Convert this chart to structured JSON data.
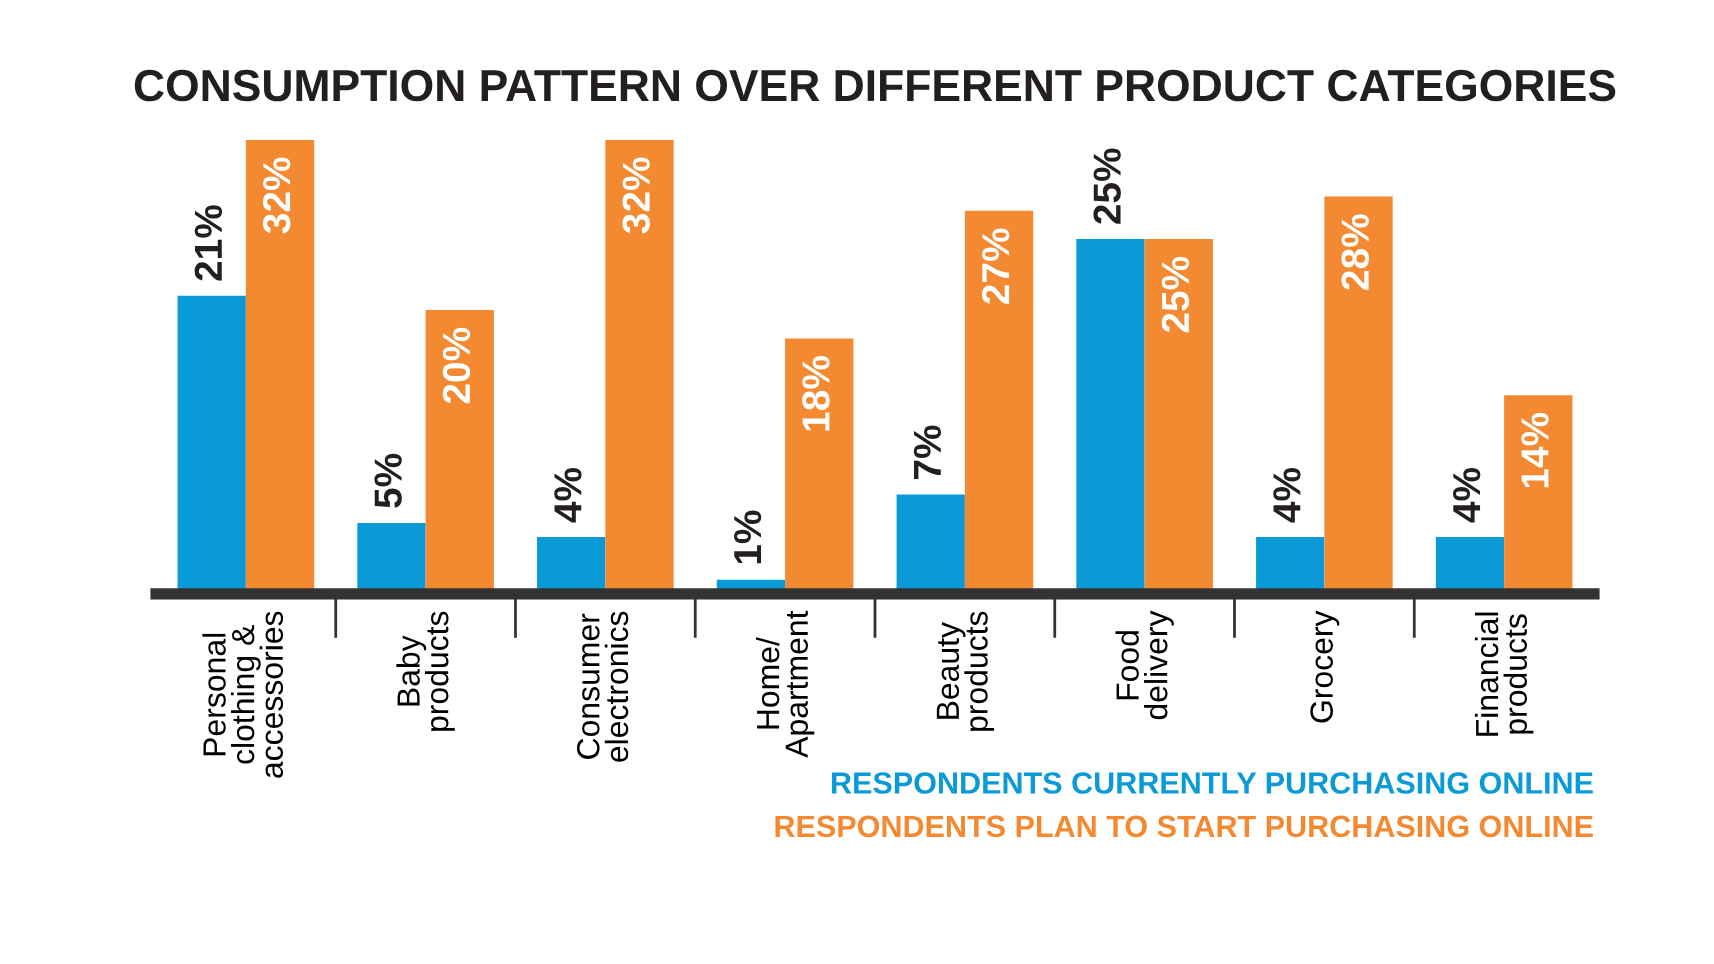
{
  "chart_data": {
    "type": "bar",
    "title": "CONSUMPTION PATTERN OVER DIFFERENT PRODUCT CATEGORIES",
    "categories": [
      "Personal\nclothing &\naccessories",
      "Baby\nproducts",
      "Consumer\nelectronics",
      "Home/\nApartment",
      "Beauty\nproducts",
      "Food\ndelivery",
      "Grocery",
      "Financial\nproducts"
    ],
    "series": [
      {
        "name": "RESPONDENTS CURRENTLY PURCHASING ONLINE",
        "color": "#0b9ad8",
        "values": [
          21,
          5,
          4,
          1,
          7,
          25,
          4,
          4
        ],
        "value_labels": [
          "21%",
          "5%",
          "4%",
          "1%",
          "7%",
          "25%",
          "4%",
          "4%"
        ]
      },
      {
        "name": "RESPONDENTS PLAN TO START PURCHASING ONLINE",
        "color": "#f38a32",
        "values": [
          32,
          20,
          32,
          18,
          27,
          25,
          28,
          14
        ],
        "value_labels": [
          "32%",
          "20%",
          "32%",
          "18%",
          "27%",
          "25%",
          "28%",
          "14%"
        ]
      }
    ],
    "ylim": [
      0,
      32
    ],
    "tick_labels": "x",
    "grid": false,
    "legend": "bottom right"
  }
}
